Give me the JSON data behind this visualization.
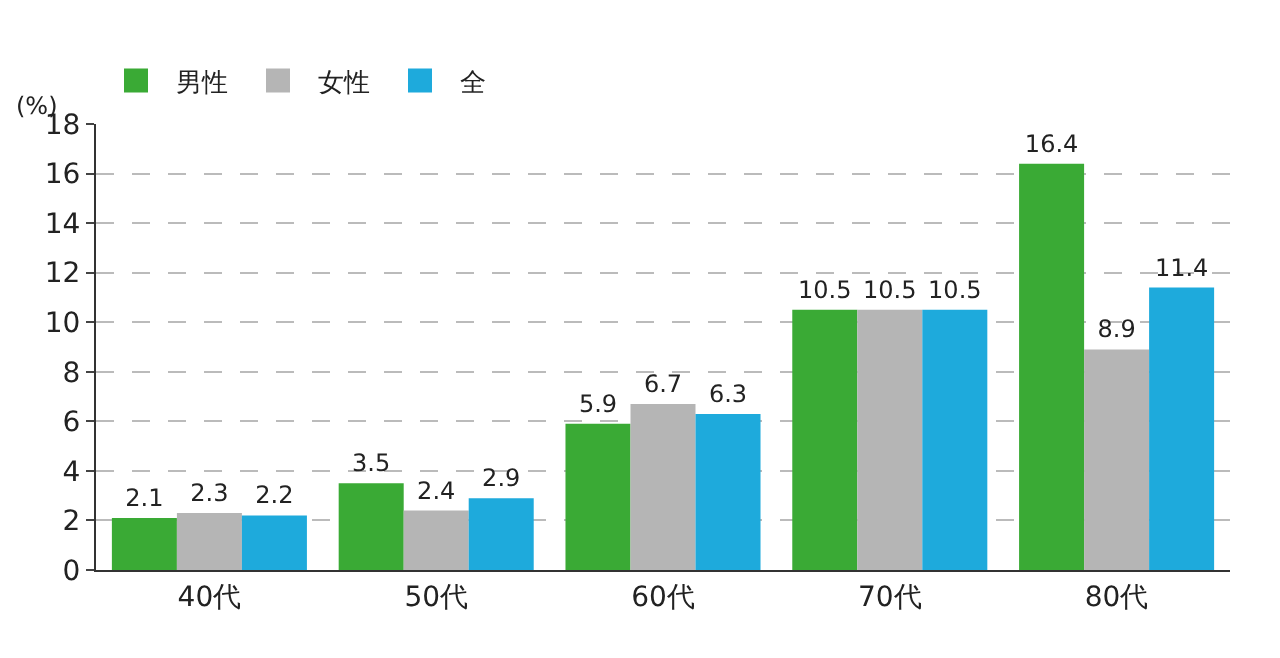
{
  "chart_data": {
    "type": "bar",
    "ylabel": "(%)",
    "categories": [
      "40代",
      "50代",
      "60代",
      "70代",
      "80代"
    ],
    "series": [
      {
        "name": "男性",
        "color": "#3aaa35",
        "values": [
          2.1,
          3.5,
          5.9,
          10.5,
          16.4
        ]
      },
      {
        "name": "女性",
        "color": "#b5b5b5",
        "values": [
          2.3,
          2.4,
          6.7,
          10.5,
          8.9
        ]
      },
      {
        "name": "全",
        "color": "#1eaadc",
        "values": [
          2.2,
          2.9,
          6.3,
          10.5,
          11.4
        ]
      }
    ],
    "ylim": [
      0,
      18
    ],
    "yticks": [
      0,
      2,
      4,
      6,
      8,
      10,
      12,
      14,
      16,
      18
    ],
    "grid": "y",
    "legend": "top left",
    "data_labels": true
  }
}
